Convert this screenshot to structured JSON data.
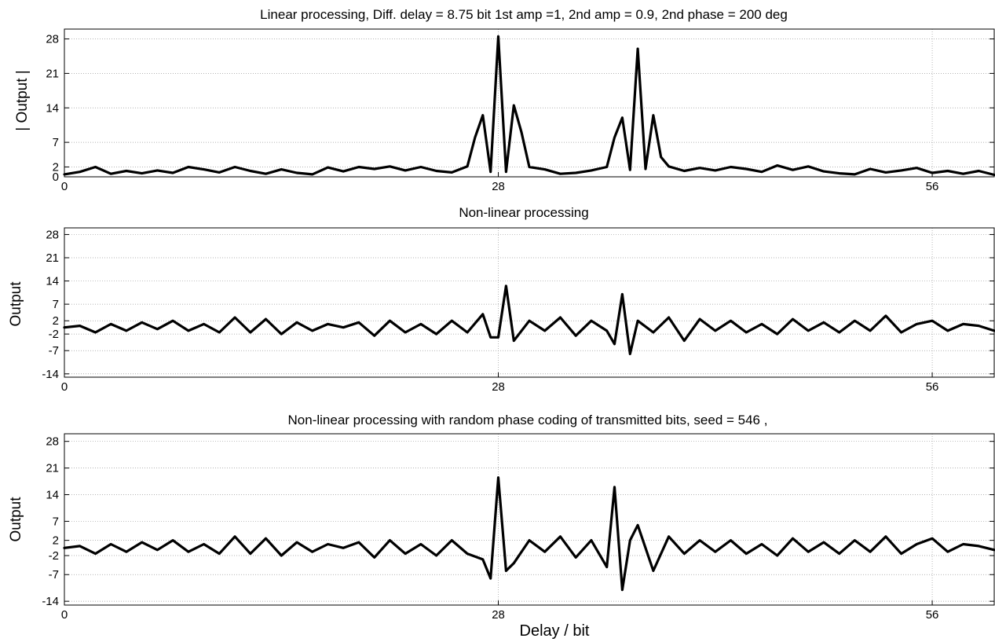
{
  "figure": {
    "xlabel": "Delay / bit"
  },
  "chart_data": [
    {
      "type": "line",
      "title": "Linear processing,   Diff. delay = 8.75 bit   1st amp =1, 2nd amp = 0.9,   2nd phase = 200 deg",
      "ylabel": "| Output |",
      "xlabel": "",
      "xlim": [
        0,
        60
      ],
      "ylim": [
        0,
        30
      ],
      "xticks": [
        0,
        28,
        56
      ],
      "yticks": [
        0,
        2,
        7,
        14,
        21,
        28
      ],
      "grid": true,
      "series": [
        {
          "x": [
            0,
            1,
            2,
            3,
            4,
            5,
            6,
            7,
            8,
            9,
            10,
            11,
            12,
            13,
            14,
            15,
            16,
            17,
            18,
            19,
            20,
            21,
            22,
            23,
            24,
            25,
            26,
            26.5,
            27,
            27.5,
            28,
            28.5,
            29,
            29.5,
            30,
            31,
            32,
            33,
            34,
            35,
            35.5,
            36,
            36.5,
            37,
            37.5,
            38,
            38.5,
            39,
            40,
            41,
            42,
            43,
            44,
            45,
            46,
            47,
            48,
            49,
            50,
            51,
            52,
            53,
            54,
            55,
            56,
            57,
            58,
            59,
            60
          ],
          "y": [
            0.5,
            1,
            2,
            0.6,
            1.2,
            0.7,
            1.3,
            0.8,
            2,
            1.5,
            0.9,
            2,
            1.2,
            0.6,
            1.5,
            0.8,
            0.5,
            1.9,
            1.1,
            2,
            1.6,
            2.1,
            1.3,
            2,
            1.2,
            0.9,
            2.1,
            8,
            12.5,
            1,
            28.5,
            1,
            14.5,
            9,
            2,
            1.5,
            0.6,
            0.8,
            1.3,
            2,
            8,
            12,
            1.4,
            26,
            1.6,
            12.5,
            4,
            2.1,
            1.2,
            1.8,
            1.3,
            2,
            1.6,
            1,
            2.3,
            1.4,
            2.1,
            1.1,
            0.7,
            0.5,
            1.6,
            0.9,
            1.3,
            1.8,
            0.8,
            1.2,
            0.6,
            1.2,
            0.4
          ]
        }
      ]
    },
    {
      "type": "line",
      "title": "Non-linear processing",
      "ylabel": "Output",
      "xlabel": "",
      "xlim": [
        0,
        60
      ],
      "ylim": [
        -15,
        30
      ],
      "xticks": [
        0,
        28,
        56
      ],
      "yticks": [
        -14,
        -7,
        -2,
        2,
        7,
        14,
        21,
        28
      ],
      "grid": true,
      "series": [
        {
          "x": [
            0,
            1,
            2,
            3,
            4,
            5,
            6,
            7,
            8,
            9,
            10,
            11,
            12,
            13,
            14,
            15,
            16,
            17,
            18,
            19,
            20,
            21,
            22,
            23,
            24,
            25,
            26,
            27,
            27.5,
            28,
            28.5,
            29,
            30,
            31,
            32,
            33,
            34,
            35,
            35.5,
            36,
            36.5,
            37,
            38,
            39,
            40,
            41,
            42,
            43,
            44,
            45,
            46,
            47,
            48,
            49,
            50,
            51,
            52,
            53,
            54,
            55,
            56,
            57,
            58,
            59,
            60
          ],
          "y": [
            0,
            0.5,
            -1.5,
            1,
            -1,
            1.5,
            -0.5,
            2,
            -1,
            1,
            -1.5,
            3,
            -1.5,
            2.5,
            -2,
            1.5,
            -1,
            1,
            0,
            1.5,
            -2.5,
            2,
            -1.5,
            1,
            -2,
            2,
            -1.5,
            4,
            -3,
            -3,
            12.5,
            -4,
            2,
            -1,
            3,
            -2.5,
            2,
            -1,
            -5,
            10,
            -8,
            2,
            -1.5,
            3,
            -4,
            2.5,
            -1,
            2,
            -1.5,
            1,
            -2,
            2.5,
            -1,
            1.5,
            -1.5,
            2,
            -1,
            3.5,
            -1.5,
            1,
            2,
            -1,
            1,
            0.5,
            -1
          ]
        }
      ]
    },
    {
      "type": "line",
      "title": "Non-linear processing with random phase coding of transmitted bits,   seed = 546   ,",
      "ylabel": "Output",
      "xlabel": "Delay / bit",
      "xlim": [
        0,
        60
      ],
      "ylim": [
        -15,
        30
      ],
      "xticks": [
        0,
        28,
        56
      ],
      "yticks": [
        -14,
        -7,
        -2,
        2,
        7,
        14,
        21,
        28
      ],
      "grid": true,
      "series": [
        {
          "x": [
            0,
            1,
            2,
            3,
            4,
            5,
            6,
            7,
            8,
            9,
            10,
            11,
            12,
            13,
            14,
            15,
            16,
            17,
            18,
            19,
            20,
            21,
            22,
            23,
            24,
            25,
            26,
            27,
            27.5,
            28,
            28.5,
            29,
            30,
            31,
            32,
            33,
            34,
            35,
            35.5,
            36,
            36.5,
            37,
            38,
            39,
            40,
            41,
            42,
            43,
            44,
            45,
            46,
            47,
            48,
            49,
            50,
            51,
            52,
            53,
            54,
            55,
            56,
            57,
            58,
            59,
            60
          ],
          "y": [
            0,
            0.5,
            -1.5,
            1,
            -1,
            1.5,
            -0.5,
            2,
            -1,
            1,
            -1.5,
            3,
            -1.5,
            2.5,
            -2,
            1.5,
            -1,
            1,
            0,
            1.5,
            -2.5,
            2,
            -1.5,
            1,
            -2,
            2,
            -1.5,
            -3,
            -8,
            18.5,
            -6,
            -4,
            2,
            -1,
            3,
            -2.5,
            2,
            -5,
            16,
            -11,
            2,
            6,
            -6,
            3,
            -1.5,
            2,
            -1,
            2,
            -1.5,
            1,
            -2,
            2.5,
            -1,
            1.5,
            -1.5,
            2,
            -1,
            3,
            -1.5,
            1,
            2.5,
            -1,
            1,
            0.5,
            -0.5
          ]
        }
      ]
    }
  ]
}
